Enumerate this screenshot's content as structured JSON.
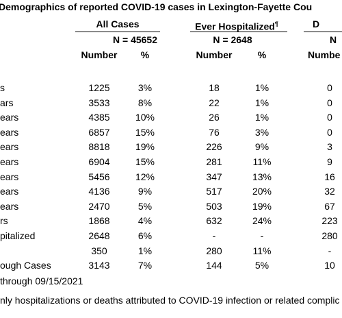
{
  "table": {
    "title": "Demographics of reported COVID-19 cases in Lexington-Fayette Cou",
    "groups": [
      {
        "name": "All Cases",
        "n": "N = 45652"
      },
      {
        "name": "Ever Hospitalized",
        "mark": "¶",
        "n": "N = 2648"
      },
      {
        "name": "D",
        "n": "N"
      }
    ],
    "columns": [
      "Number",
      "%",
      "Number",
      "%",
      "Numbe"
    ],
    "rows": [
      {
        "label": "s",
        "cells": [
          "1225",
          "3%",
          "18",
          "1%",
          "0"
        ]
      },
      {
        "label": "ars",
        "cells": [
          "3533",
          "8%",
          "22",
          "1%",
          "0"
        ]
      },
      {
        "label": "ears",
        "cells": [
          "4385",
          "10%",
          "26",
          "1%",
          "0"
        ]
      },
      {
        "label": "ears",
        "cells": [
          "6857",
          "15%",
          "76",
          "3%",
          "0"
        ]
      },
      {
        "label": "ears",
        "cells": [
          "8818",
          "19%",
          "226",
          "9%",
          "3"
        ]
      },
      {
        "label": "ears",
        "cells": [
          "6904",
          "15%",
          "281",
          "11%",
          "9"
        ]
      },
      {
        "label": "ears",
        "cells": [
          "5456",
          "12%",
          "347",
          "13%",
          "16"
        ]
      },
      {
        "label": "ears",
        "cells": [
          "4136",
          "9%",
          "517",
          "20%",
          "32"
        ]
      },
      {
        "label": "ears",
        "cells": [
          "2470",
          "5%",
          "503",
          "19%",
          "67"
        ]
      },
      {
        "label": "rs",
        "cells": [
          "1868",
          "4%",
          "632",
          "24%",
          "223"
        ]
      },
      {
        "label": "pitalized",
        "cells": [
          "2648",
          "6%",
          "-",
          "-",
          "280"
        ]
      },
      {
        "label": null,
        "cells": [
          "350",
          "1%",
          "280",
          "11%",
          "-"
        ]
      },
      {
        "label": "ough Cases",
        "cells": [
          "3143",
          "7%",
          "144",
          "5%",
          "10"
        ]
      }
    ],
    "footnotes": [
      "through 09/15/2021",
      "nly hospitalizations or deaths attributed to COVID-19 infection or related complic"
    ]
  }
}
